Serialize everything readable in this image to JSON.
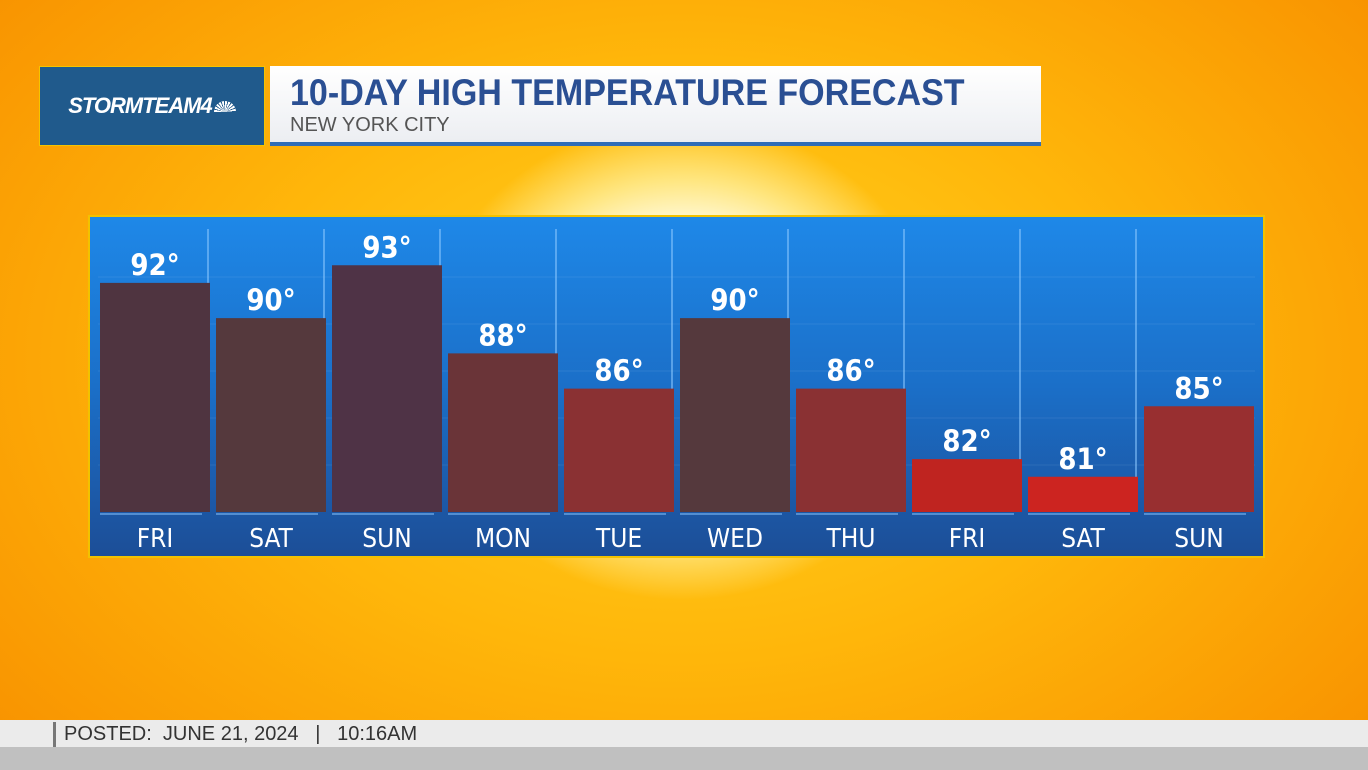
{
  "logo": {
    "text": "STORMTEAM4"
  },
  "header": {
    "title": "10-DAY HIGH TEMPERATURE FORECAST",
    "subtitle": "NEW YORK CITY"
  },
  "footer": {
    "posted_label": "POSTED:",
    "date": "JUNE 21, 2024",
    "separator": "|",
    "time": "10:16AM"
  },
  "chart_data": {
    "type": "bar",
    "categories": [
      "FRI",
      "SAT",
      "SUN",
      "MON",
      "TUE",
      "WED",
      "THU",
      "FRI",
      "SAT",
      "SUN"
    ],
    "values": [
      92,
      90,
      93,
      88,
      86,
      90,
      86,
      82,
      81,
      85
    ],
    "labels": [
      "92°",
      "90°",
      "93°",
      "88°",
      "86°",
      "90°",
      "86°",
      "82°",
      "81°",
      "85°"
    ],
    "unit": "°F",
    "ylim": [
      79,
      95
    ],
    "grid": true,
    "bar_colors": [
      "#4f3440",
      "#55393d",
      "#4f3346",
      "#6a3438",
      "#8a3133",
      "#55393d",
      "#8a3133",
      "#bf2420",
      "#cc2420",
      "#982f30"
    ],
    "background_color": "#1b6fc8"
  }
}
